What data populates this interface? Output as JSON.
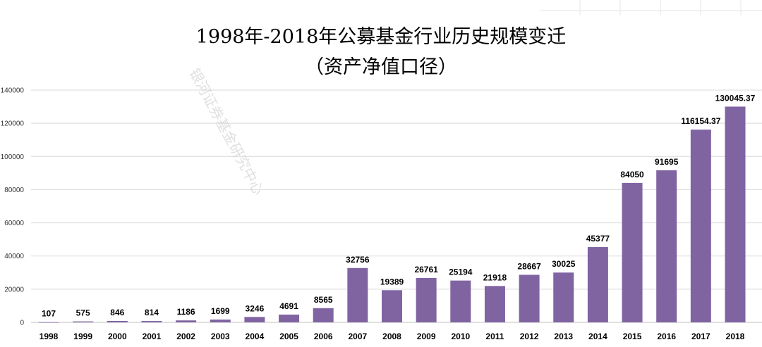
{
  "chart_data": {
    "type": "bar",
    "title": "1998年-2018年公募基金行业历史规模变迁",
    "subtitle": "（资产净值口径）",
    "xlabel": "",
    "ylabel": "",
    "categories": [
      "1998",
      "1999",
      "2000",
      "2001",
      "2002",
      "2003",
      "2004",
      "2005",
      "2006",
      "2007",
      "2008",
      "2009",
      "2010",
      "2011",
      "2012",
      "2013",
      "2014",
      "2015",
      "2016",
      "2017",
      "2018"
    ],
    "values": [
      107,
      575,
      846,
      814,
      1186,
      1699,
      3246,
      4691,
      8565,
      32756,
      19389,
      26761,
      25194,
      21918,
      28667,
      30025,
      45377,
      84050,
      91695,
      116154.37,
      130045.37
    ],
    "value_labels": [
      "107",
      "575",
      "846",
      "814",
      "1186",
      "1699",
      "3246",
      "4691",
      "8565",
      "32756",
      "19389",
      "26761",
      "25194",
      "21918",
      "28667",
      "30025",
      "45377",
      "84050",
      "91695",
      "116154.37",
      "130045.37"
    ],
    "ylim": [
      0,
      140000
    ],
    "yticks": [
      "0",
      "20000",
      "40000",
      "60000",
      "80000",
      "100000",
      "120000",
      "140000"
    ],
    "grid": true,
    "bar_color": "#8064a2",
    "watermark": "银河证券基金研究中心"
  }
}
